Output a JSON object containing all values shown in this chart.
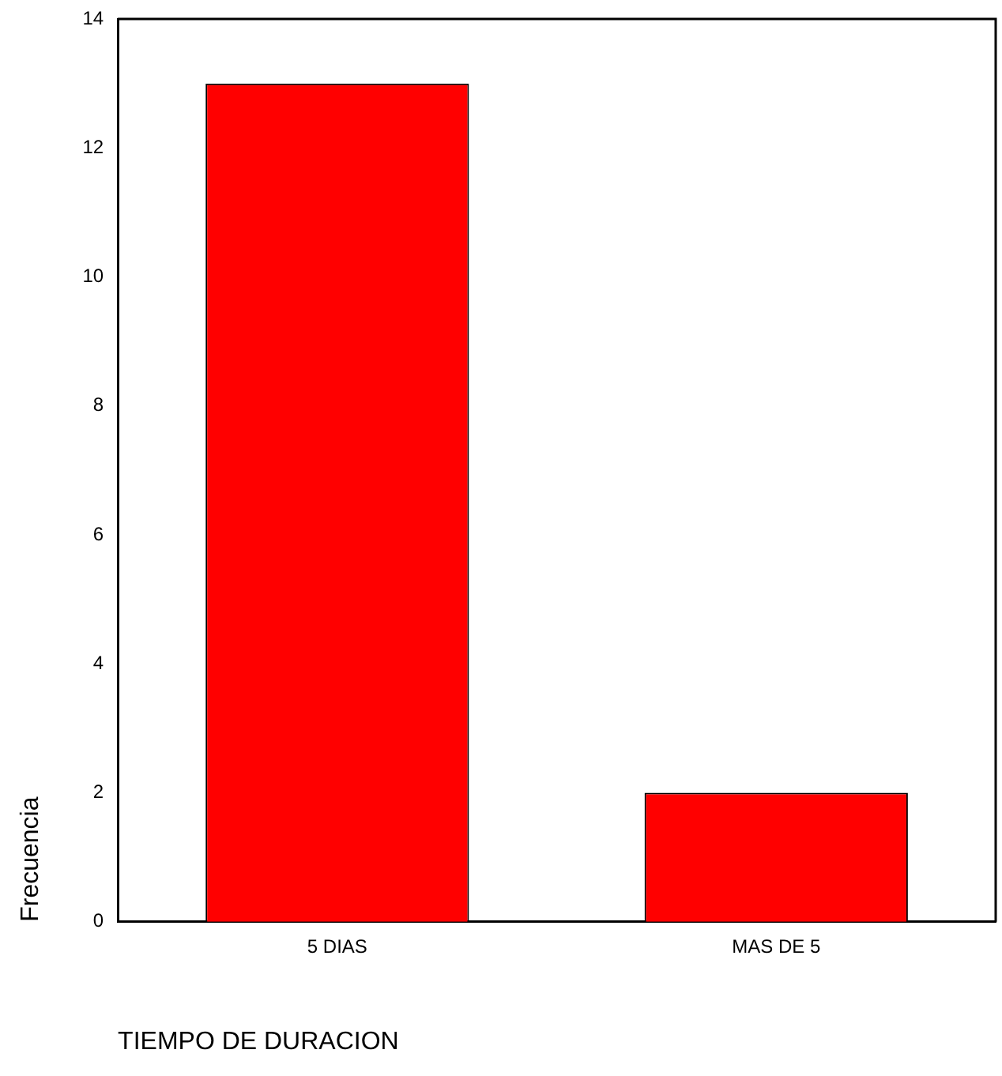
{
  "chart_data": {
    "type": "bar",
    "xlabel": "TIEMPO DE DURACION",
    "ylabel": "Frecuencia",
    "categories": [
      "5 DIAS",
      "MAS DE 5"
    ],
    "values": [
      13,
      2
    ],
    "color": "#ff0000",
    "ylim": [
      0,
      14
    ],
    "yticks": [
      0,
      2,
      4,
      6,
      8,
      10,
      12,
      14
    ],
    "grid": false,
    "legend": false
  }
}
